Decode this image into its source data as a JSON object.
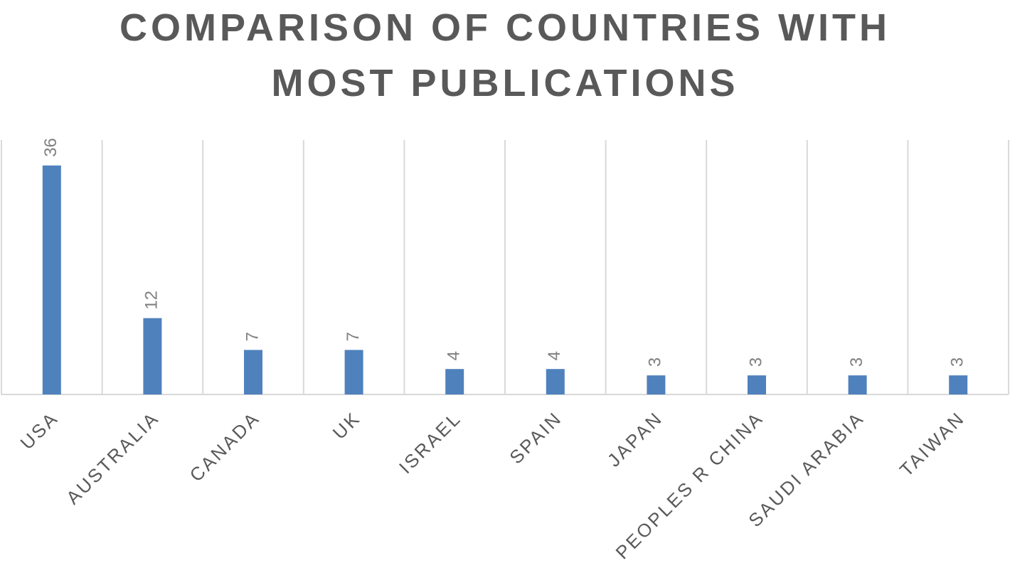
{
  "chart_data": {
    "type": "bar",
    "title": "COMPARISON OF COUNTRIES WITH MOST PUBLICATIONS",
    "categories": [
      "USA",
      "AUSTRALIA",
      "CANADA",
      "UK",
      "ISRAEL",
      "SPAIN",
      "JAPAN",
      "PEOPLES R CHINA",
      "SAUDI ARABIA",
      "TAIWAN"
    ],
    "values": [
      36,
      12,
      7,
      7,
      4,
      4,
      3,
      3,
      3,
      3
    ],
    "color": "#4f81bd",
    "ylim": [
      0,
      40
    ]
  }
}
